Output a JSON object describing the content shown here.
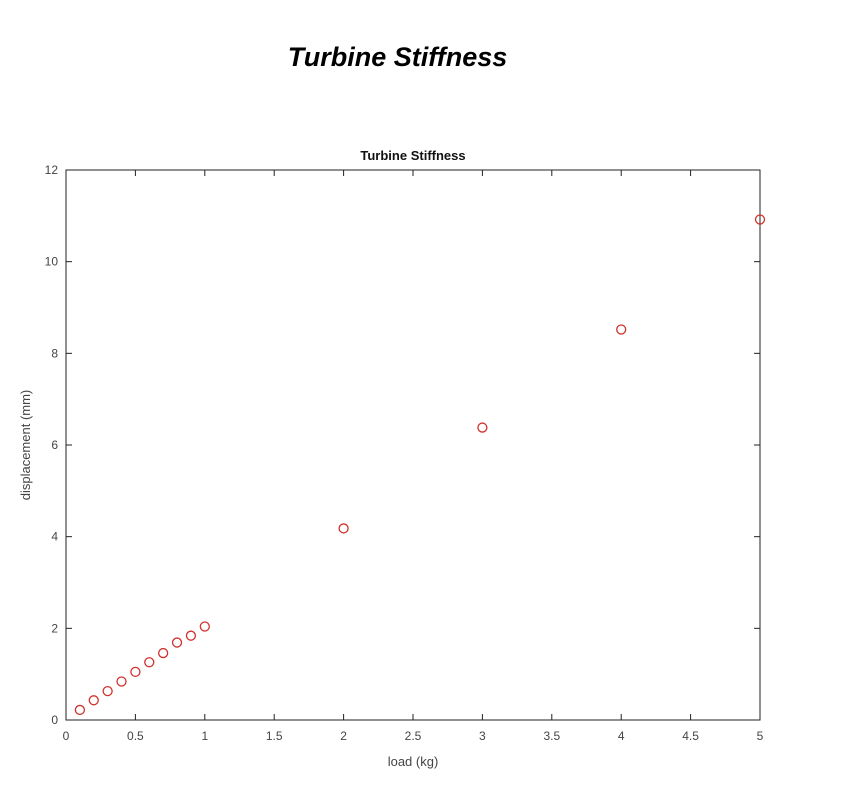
{
  "page_title": "Turbine Stiffness",
  "chart_data": {
    "type": "scatter",
    "title": "Turbine Stiffness",
    "xlabel": "load (kg)",
    "ylabel": "displacement (mm)",
    "xlim": [
      0,
      5
    ],
    "ylim": [
      0,
      12
    ],
    "x_ticks": [
      0,
      0.5,
      1,
      1.5,
      2,
      2.5,
      3,
      3.5,
      4,
      4.5,
      5
    ],
    "x_tick_labels": [
      "0",
      "0.5",
      "1",
      "1.5",
      "2",
      "2.5",
      "3",
      "3.5",
      "4",
      "4.5",
      "5"
    ],
    "y_ticks": [
      0,
      2,
      4,
      6,
      8,
      10,
      12
    ],
    "y_tick_labels": [
      "0",
      "2",
      "4",
      "6",
      "8",
      "10",
      "12"
    ],
    "grid": false,
    "marker": "circle-open",
    "marker_color": "#d0312d",
    "series": [
      {
        "x": [
          0.1,
          0.2,
          0.3,
          0.4,
          0.5,
          0.6,
          0.7,
          0.8,
          0.9,
          1,
          2,
          3,
          4,
          5
        ],
        "y": [
          0.22,
          0.43,
          0.63,
          0.84,
          1.05,
          1.26,
          1.46,
          1.69,
          1.84,
          2.04,
          4.18,
          6.38,
          8.52,
          10.92
        ]
      }
    ]
  }
}
